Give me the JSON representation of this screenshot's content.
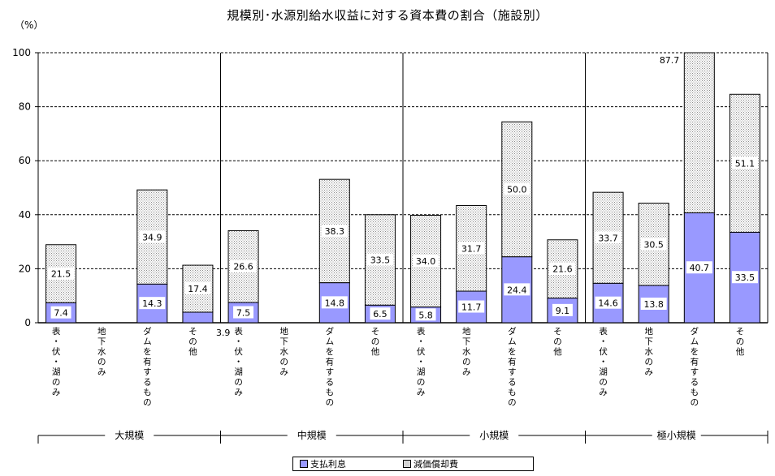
{
  "title": "規模別･水源別給水収益に対する資本費の割合（施設別）",
  "unit": "（%）",
  "legend": {
    "interest": "支払利息",
    "depreciation": "減価償却費"
  },
  "colors": {
    "interest": "#9999ff",
    "depreciation": "#d4d4d4",
    "grid": "#000000"
  },
  "chart_data": {
    "type": "bar",
    "stacked": true,
    "title": "規模別･水源別給水収益に対する資本費の割合（施設別）",
    "ylabel": "（%）",
    "ylim": [
      0,
      100
    ],
    "yticks": [
      0,
      20,
      40,
      60,
      80,
      100
    ],
    "grid": true,
    "legend_position": "bottom",
    "groups": [
      "大規模",
      "中規模",
      "小規模",
      "極小規模"
    ],
    "categories": [
      "表・伏・湖のみ",
      "地下水のみ",
      "ダムを有するもの",
      "その他"
    ],
    "series": [
      {
        "name": "支払利息",
        "values": [
          [
            7.4,
            null,
            14.3,
            3.9
          ],
          [
            7.5,
            null,
            14.8,
            6.5
          ],
          [
            5.8,
            11.7,
            24.4,
            9.1
          ],
          [
            14.6,
            13.8,
            40.7,
            33.5
          ]
        ]
      },
      {
        "name": "減価償却費",
        "values": [
          [
            21.5,
            null,
            34.9,
            17.4
          ],
          [
            26.6,
            null,
            38.3,
            33.5
          ],
          [
            34.0,
            31.7,
            50.0,
            21.6
          ],
          [
            33.7,
            30.5,
            87.7,
            51.1
          ]
        ]
      }
    ]
  }
}
